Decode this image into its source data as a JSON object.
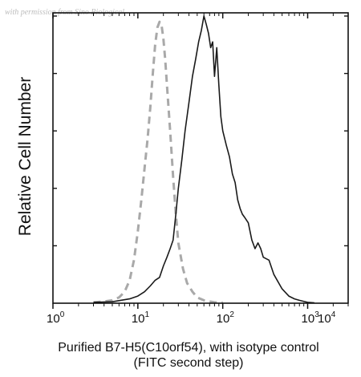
{
  "watermark": "with permission from Sino Biological",
  "chart_data": {
    "type": "line",
    "title": "",
    "xlabel_lines": [
      "Purified B7-H5(C10orf54), with isotype control",
      "(FITC second step)"
    ],
    "ylabel": "Relative Cell Number",
    "x_scale": "log",
    "xlim": [
      1,
      3000
    ],
    "ylim": [
      0,
      100
    ],
    "x_ticks": [
      {
        "value": 1,
        "base": "10",
        "exp": "0"
      },
      {
        "value": 10,
        "base": "10",
        "exp": "1"
      },
      {
        "value": 100,
        "base": "10",
        "exp": "2"
      },
      {
        "value": 1000,
        "base": "10",
        "exp": "3"
      },
      {
        "value": 10000,
        "base": "10",
        "exp": "4"
      }
    ],
    "grid": false,
    "legend": "none",
    "series": [
      {
        "style": "dashed",
        "color": "#a9a9a9",
        "x": [
          3,
          4,
          5,
          6,
          7,
          8,
          9,
          10,
          11,
          12,
          13,
          14,
          15,
          16,
          17,
          18,
          19,
          20,
          21,
          22,
          24,
          26,
          28,
          30,
          34,
          38,
          44,
          50,
          60,
          70,
          80,
          100
        ],
        "y": [
          0.3,
          0.6,
          1,
          2,
          4,
          8,
          15,
          25,
          36,
          47,
          57,
          68,
          80,
          90,
          96,
          98,
          97,
          92,
          85,
          76,
          60,
          44,
          31,
          21,
          12,
          7,
          4,
          2,
          1,
          0.6,
          0.3,
          0.2
        ]
      },
      {
        "style": "solid",
        "color": "#1a1a1a",
        "x": [
          3,
          5,
          8,
          10,
          12,
          14,
          16,
          18,
          20,
          22,
          24,
          26,
          28,
          30,
          33,
          36,
          40,
          44,
          48,
          52,
          56,
          60,
          64,
          68,
          72,
          76,
          80,
          85,
          90,
          95,
          100,
          110,
          120,
          130,
          140,
          150,
          160,
          170,
          180,
          200,
          220,
          240,
          260,
          280,
          300,
          350,
          400,
          500,
          600,
          700,
          800,
          1000,
          1200
        ],
        "y": [
          0.3,
          0.5,
          1.5,
          2.5,
          4,
          6,
          8,
          9,
          13,
          16,
          19,
          22,
          31,
          40,
          50,
          60,
          70,
          79,
          85,
          91,
          95,
          100,
          97,
          94,
          89,
          91,
          79,
          89,
          76,
          65,
          60,
          55,
          51,
          45,
          42,
          36,
          33,
          31,
          30,
          28,
          22,
          19,
          21,
          19,
          16,
          15,
          10,
          5,
          2.5,
          1.5,
          1,
          0.3,
          0.1
        ]
      }
    ]
  }
}
